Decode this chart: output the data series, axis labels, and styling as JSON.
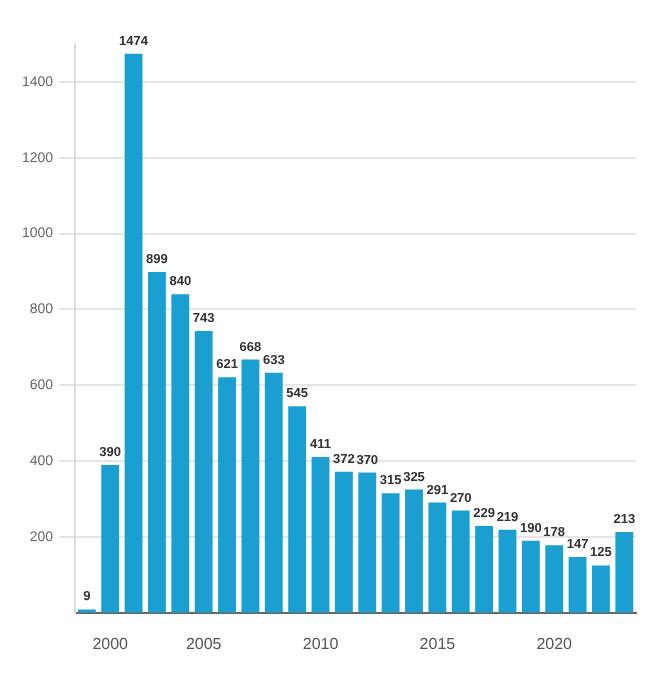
{
  "chart_data": {
    "type": "bar",
    "categories": [
      null,
      "2000",
      null,
      null,
      null,
      "2005",
      null,
      null,
      null,
      null,
      "2010",
      null,
      null,
      null,
      null,
      "2015",
      null,
      null,
      null,
      null,
      "2020",
      null,
      null,
      null
    ],
    "values": [
      9,
      390,
      1474,
      899,
      840,
      743,
      621,
      668,
      633,
      545,
      411,
      372,
      370,
      315,
      325,
      291,
      270,
      229,
      219,
      190,
      178,
      147,
      125,
      213
    ],
    "color": "#1a9fd0",
    "ylim": [
      0,
      1500
    ],
    "yticks": [
      200,
      400,
      600,
      800,
      1000,
      1200,
      1400
    ],
    "grid": "y",
    "data_labels": true,
    "legend": false
  }
}
